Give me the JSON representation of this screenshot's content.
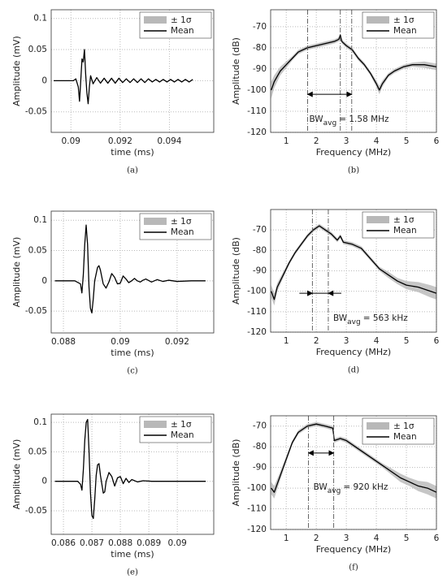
{
  "chart_data": [
    {
      "type": "line",
      "caption": "(a)",
      "xlabel": "time (ms)",
      "ylabel": "Amplitude (mV)",
      "grid": true,
      "legend": "upper right",
      "xlim": [
        0.0892,
        0.0958
      ],
      "ylim": [
        -0.083,
        0.114
      ],
      "xticks": [
        0.09,
        0.092,
        0.094
      ],
      "yticks": [
        -0.05,
        0,
        0.05,
        0.1
      ],
      "x": [
        0.0893,
        0.0896,
        0.0899,
        0.0901,
        0.0902,
        0.0903,
        0.09035,
        0.0904,
        0.09045,
        0.0905,
        0.09055,
        0.0906,
        0.09065,
        0.0907,
        0.09075,
        0.0908,
        0.0909,
        0.09105,
        0.0912,
        0.09135,
        0.0915,
        0.09165,
        0.0918,
        0.09195,
        0.0921,
        0.09225,
        0.0924,
        0.09255,
        0.0927,
        0.09285,
        0.093,
        0.09315,
        0.0933,
        0.09345,
        0.0936,
        0.09375,
        0.0939,
        0.09405,
        0.0942,
        0.09435,
        0.0945,
        0.09465,
        0.0948,
        0.09495
      ],
      "series": [
        {
          "name": "± 1σ",
          "color": "#b8b8b8"
        },
        {
          "name": "Mean",
          "color": "#000000",
          "values": [
            0,
            0,
            0,
            0,
            0.003,
            -0.01,
            -0.033,
            0,
            0.035,
            0.03,
            0.05,
            0.01,
            -0.02,
            -0.037,
            -0.01,
            0.008,
            -0.005,
            0.005,
            -0.004,
            0.004,
            -0.004,
            0.004,
            -0.004,
            0.004,
            -0.003,
            0.003,
            -0.003,
            0.003,
            -0.003,
            0.003,
            -0.003,
            0.003,
            -0.002,
            0.002,
            -0.002,
            0.002,
            -0.002,
            0.002,
            -0.002,
            0.002,
            -0.002,
            0.002,
            -0.002,
            0.002
          ]
        }
      ]
    },
    {
      "type": "line",
      "caption": "(b)",
      "xlabel": "Frequency (MHz)",
      "ylabel": "Amplitude (dB)",
      "grid": true,
      "legend": "upper right",
      "xlim": [
        0.48,
        6
      ],
      "ylim": [
        -120,
        -62
      ],
      "xticks": [
        1,
        2,
        3,
        4,
        5,
        6
      ],
      "yticks": [
        -120,
        -110,
        -100,
        -90,
        -80,
        -70
      ],
      "x": [
        0.5,
        0.6,
        0.8,
        1.0,
        1.2,
        1.4,
        1.7,
        2.0,
        2.3,
        2.6,
        2.75,
        2.8,
        2.85,
        3.0,
        3.2,
        3.4,
        3.6,
        3.8,
        4.0,
        4.1,
        4.2,
        4.4,
        4.6,
        4.9,
        5.2,
        5.6,
        6.0
      ],
      "series": [
        {
          "name": "± 1σ",
          "color": "#b8b8b8",
          "values": [
            4,
            3,
            2,
            1.5,
            1,
            1,
            1,
            1,
            1,
            1,
            1,
            1,
            1,
            1,
            1,
            1,
            1,
            1,
            1.5,
            2,
            1.5,
            1,
            1,
            1,
            1,
            1.5,
            1.5
          ]
        },
        {
          "name": "Mean",
          "color": "#000000",
          "values": [
            -100,
            -96,
            -91,
            -88,
            -85,
            -82,
            -80,
            -79,
            -78,
            -77,
            -76,
            -74,
            -77,
            -79,
            -81,
            -85,
            -88,
            -92,
            -97,
            -100,
            -97,
            -93,
            -91,
            -89,
            -88,
            -88,
            -89
          ]
        }
      ],
      "vlines": [
        1.71,
        2.8,
        3.18
      ],
      "arrow": {
        "x": [
          1.71,
          3.18
        ],
        "y": -102,
        "heads": "out"
      },
      "annotation": {
        "text": "BW",
        "sub": "avg",
        "rest": "= 1.58 MHz"
      }
    },
    {
      "type": "line",
      "caption": "(c)",
      "xlabel": "time (ms)",
      "ylabel": "Amplitude (mV)",
      "grid": true,
      "legend": "upper right",
      "xlim": [
        0.08757,
        0.09329
      ],
      "ylim": [
        -0.086,
        0.115
      ],
      "xticks": [
        0.088,
        0.09,
        0.092
      ],
      "yticks": [
        -0.05,
        0,
        0.05,
        0.1
      ],
      "x": [
        0.0877,
        0.0881,
        0.0884,
        0.0886,
        0.08865,
        0.0887,
        0.08875,
        0.0888,
        0.08885,
        0.0889,
        0.08895,
        0.089,
        0.08905,
        0.0891,
        0.0892,
        0.08925,
        0.0893,
        0.0894,
        0.0895,
        0.0896,
        0.0897,
        0.0898,
        0.0899,
        0.09,
        0.0901,
        0.0902,
        0.0903,
        0.0904,
        0.0905,
        0.0906,
        0.0907,
        0.0908,
        0.0909,
        0.0911,
        0.0913,
        0.0915,
        0.0917,
        0.092,
        0.0925,
        0.093
      ],
      "series": [
        {
          "name": "± 1σ",
          "color": "#b8b8b8"
        },
        {
          "name": "Mean",
          "color": "#000000",
          "values": [
            0,
            0,
            0,
            -0.005,
            -0.02,
            0.01,
            0.06,
            0.092,
            0.06,
            -0.01,
            -0.045,
            -0.053,
            -0.03,
            0,
            0.022,
            0.025,
            0.018,
            -0.005,
            -0.012,
            -0.002,
            0.012,
            0.006,
            -0.005,
            -0.004,
            0.008,
            0.003,
            -0.003,
            0,
            0.004,
            0,
            -0.002,
            0.001,
            0.003,
            -0.002,
            0.002,
            -0.001,
            0.001,
            -0.001,
            0,
            0
          ]
        }
      ]
    },
    {
      "type": "line",
      "caption": "(d)",
      "xlabel": "Frequency (MHz)",
      "ylabel": "Amplitude (dB)",
      "grid": true,
      "legend": "upper right",
      "xlim": [
        0.48,
        6
      ],
      "ylim": [
        -120,
        -60
      ],
      "xticks": [
        1,
        2,
        3,
        4,
        5,
        6
      ],
      "yticks": [
        -120,
        -110,
        -100,
        -90,
        -80,
        -70
      ],
      "x": [
        0.5,
        0.6,
        0.7,
        0.9,
        1.1,
        1.3,
        1.5,
        1.7,
        1.9,
        2.1,
        2.3,
        2.5,
        2.7,
        2.8,
        2.9,
        3.2,
        3.5,
        3.8,
        4.1,
        4.4,
        4.7,
        5.0,
        5.4,
        5.8,
        6.0
      ],
      "series": [
        {
          "name": "± 1σ",
          "color": "#b8b8b8",
          "values": [
            3,
            3,
            2,
            1.5,
            1,
            1,
            1,
            1,
            1,
            1,
            1,
            1,
            1,
            1,
            1,
            1,
            1,
            1,
            1,
            1.5,
            1.5,
            2,
            2.5,
            3,
            3
          ]
        },
        {
          "name": "Mean",
          "color": "#000000",
          "values": [
            -100,
            -104,
            -98,
            -92,
            -86,
            -81,
            -77,
            -73,
            -70,
            -68,
            -70,
            -72,
            -75,
            -73,
            -76,
            -77,
            -79,
            -84,
            -89,
            -92,
            -95,
            -97,
            -98,
            -100,
            -101
          ]
        }
      ],
      "vlines": [
        1.87,
        2.4
      ],
      "arrow": {
        "x": [
          1.87,
          2.4
        ],
        "y": -101,
        "heads": "in"
      },
      "annotation": {
        "text": "BW",
        "sub": "avg",
        "rest": "= 563 kHz"
      }
    },
    {
      "type": "line",
      "caption": "(e)",
      "xlabel": "time (ms)",
      "ylabel": "Amplitude (mV)",
      "grid": true,
      "legend": "upper right",
      "xlim": [
        0.08557,
        0.09128
      ],
      "ylim": [
        -0.09,
        0.114
      ],
      "xticks": [
        0.086,
        0.087,
        0.088,
        0.089,
        0.09
      ],
      "yticks": [
        -0.05,
        0,
        0.05,
        0.1
      ],
      "x": [
        0.0857,
        0.0862,
        0.0865,
        0.0866,
        0.08665,
        0.0867,
        0.08675,
        0.0868,
        0.08685,
        0.0869,
        0.08695,
        0.087,
        0.08705,
        0.0871,
        0.08715,
        0.0872,
        0.08725,
        0.0873,
        0.0874,
        0.08745,
        0.0875,
        0.0876,
        0.0877,
        0.0878,
        0.0879,
        0.088,
        0.0881,
        0.0882,
        0.0883,
        0.0884,
        0.0886,
        0.0888,
        0.0891,
        0.0895,
        0.09,
        0.0905,
        0.091
      ],
      "series": [
        {
          "name": "± 1σ",
          "color": "#b8b8b8"
        },
        {
          "name": "Mean",
          "color": "#000000",
          "values": [
            0,
            0,
            0,
            -0.005,
            -0.015,
            0.02,
            0.07,
            0.1,
            0.105,
            0.05,
            -0.02,
            -0.058,
            -0.063,
            -0.03,
            0.01,
            0.028,
            0.03,
            0.01,
            -0.02,
            -0.018,
            0,
            0.015,
            0.008,
            -0.008,
            0.006,
            0.008,
            -0.004,
            0.005,
            -0.002,
            0.003,
            -0.001,
            0.001,
            0,
            0,
            0,
            0,
            0
          ]
        }
      ]
    },
    {
      "type": "line",
      "caption": "(f)",
      "xlabel": "Frequency (MHz)",
      "ylabel": "Amplitude (dB)",
      "grid": true,
      "legend": "upper right",
      "xlim": [
        0.48,
        6
      ],
      "ylim": [
        -120,
        -65
      ],
      "xticks": [
        1,
        2,
        3,
        4,
        5,
        6
      ],
      "yticks": [
        -120,
        -110,
        -100,
        -90,
        -80,
        -70
      ],
      "x": [
        0.5,
        0.6,
        0.8,
        1.0,
        1.2,
        1.4,
        1.7,
        2.0,
        2.3,
        2.55,
        2.6,
        2.8,
        3.0,
        3.3,
        3.6,
        3.9,
        4.2,
        4.5,
        4.8,
        5.1,
        5.4,
        5.7,
        6.0
      ],
      "series": [
        {
          "name": "± 1σ",
          "color": "#b8b8b8",
          "values": [
            3,
            3,
            2,
            1.5,
            1,
            1,
            1,
            1,
            1,
            1,
            1,
            1,
            1,
            1,
            1,
            1,
            1,
            1.5,
            2,
            2,
            2.5,
            3,
            3
          ]
        },
        {
          "name": "Mean",
          "color": "#000000",
          "values": [
            -100,
            -102,
            -94,
            -86,
            -78,
            -73,
            -70,
            -69,
            -70,
            -71,
            -77,
            -76,
            -77,
            -80,
            -83,
            -86,
            -89,
            -92,
            -95,
            -97,
            -99,
            -100,
            -102
          ]
        }
      ],
      "vlines": [
        1.74,
        2.58
      ],
      "arrow": {
        "x": [
          1.74,
          2.58
        ],
        "y": -83,
        "heads": "out"
      },
      "annotation": {
        "text": "BW",
        "sub": "avg",
        "rest": "= 920 kHz"
      }
    }
  ]
}
